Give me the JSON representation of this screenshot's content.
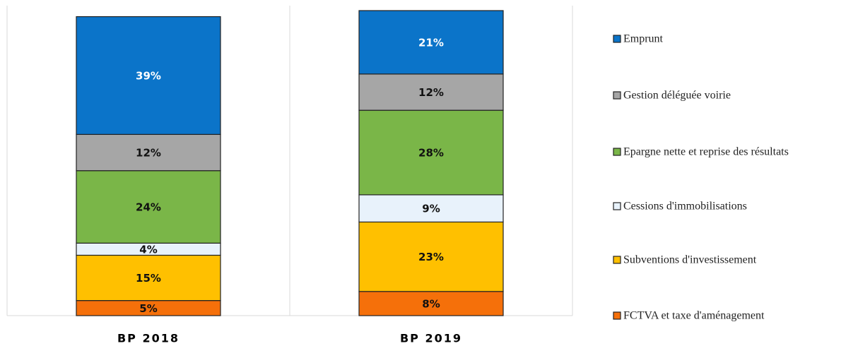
{
  "chart_data": {
    "type": "stacked_bar",
    "categories": [
      "BP 2018",
      "BP 2019"
    ],
    "ylim": [
      0,
      101
    ],
    "series": [
      {
        "name": "Emprunt",
        "color": "#0b74c9",
        "values": [
          39,
          21
        ],
        "value_labels": [
          "39%",
          "21%"
        ]
      },
      {
        "name": "Gestion déléguée voirie",
        "color": "#a6a6a6",
        "values": [
          12,
          12
        ],
        "value_labels": [
          "12%",
          "12%"
        ]
      },
      {
        "name": "Epargne nette et reprise des résultats",
        "color": "#7ab648",
        "values": [
          24,
          28
        ],
        "value_labels": [
          "24%",
          "28%"
        ]
      },
      {
        "name": "Cessions d'immobilisations",
        "color": "#e8f2fb",
        "values": [
          4,
          9
        ],
        "value_labels": [
          "4%",
          "9%"
        ]
      },
      {
        "name": "Subventions d'investissement",
        "color": "#ffc000",
        "values": [
          15,
          23
        ],
        "value_labels": [
          "15%",
          "23%"
        ]
      },
      {
        "name": "FCTVA et taxe d'aménagement",
        "color": "#f5700a",
        "values": [
          5,
          8
        ],
        "value_labels": [
          "5%",
          "8%"
        ]
      }
    ]
  }
}
